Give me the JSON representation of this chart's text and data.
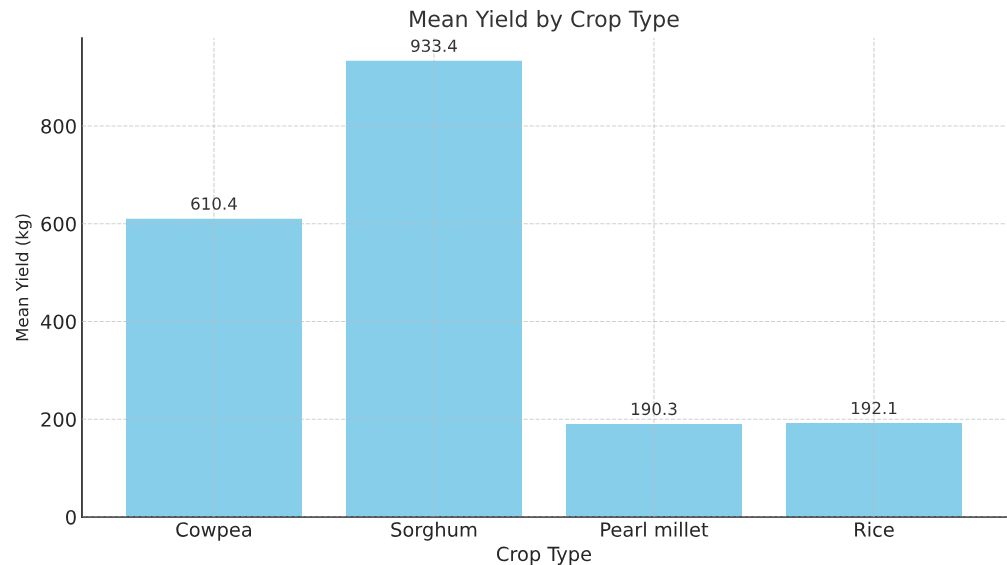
{
  "chart_data": {
    "type": "bar",
    "title": "Mean Yield by Crop Type",
    "xlabel": "Crop Type",
    "ylabel": "Mean Yield (kg)",
    "categories": [
      "Cowpea",
      "Sorghum",
      "Pearl millet",
      "Rice"
    ],
    "values": [
      610.4,
      933.4,
      190.3,
      192.1
    ],
    "color": "#87ceeb",
    "ylim": [
      0,
      980
    ],
    "yticks": [
      0,
      200,
      400,
      600,
      800
    ],
    "grid": true,
    "data_labels": true
  }
}
